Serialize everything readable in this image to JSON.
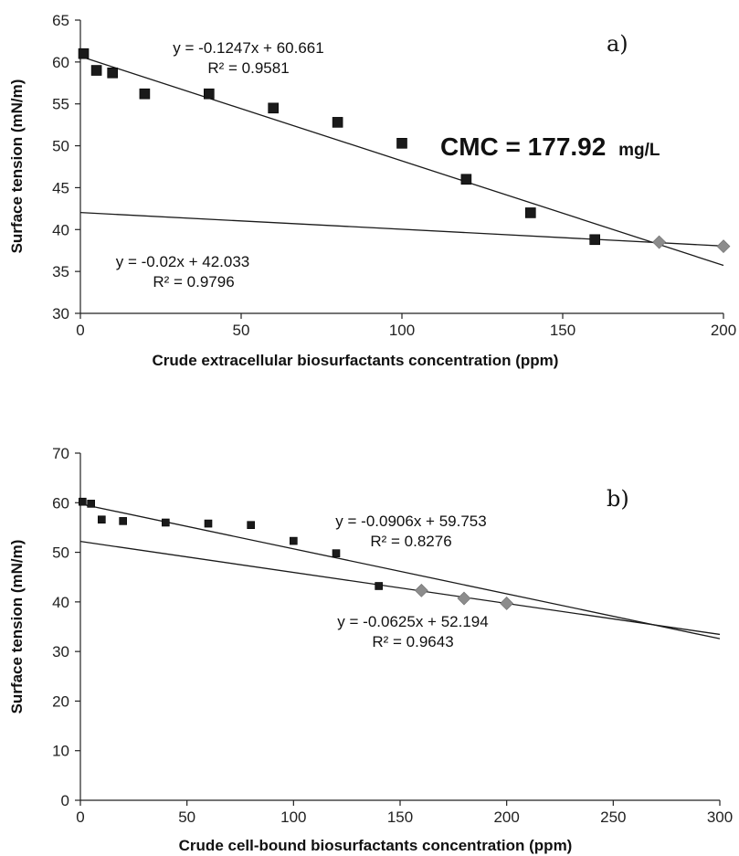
{
  "chart_data": [
    {
      "type": "scatter",
      "panel_label": "a)",
      "xlabel": "Crude extracellular biosurfactants concentration (ppm)",
      "ylabel": "Surface tension (mN/m)",
      "xlim": [
        0,
        200
      ],
      "ylim": [
        30,
        65
      ],
      "xticks": [
        0,
        50,
        100,
        150,
        200
      ],
      "yticks": [
        30,
        35,
        40,
        45,
        50,
        55,
        60,
        65
      ],
      "grid": false,
      "annotation": {
        "cmc_main": "CMC = 177.92",
        "cmc_unit": "mg/L"
      },
      "series": [
        {
          "marker": "square",
          "color": "#1a1a1a",
          "x": [
            1,
            5,
            10,
            20,
            40,
            60,
            80,
            100,
            120,
            140,
            160
          ],
          "y": [
            61.0,
            59.0,
            58.7,
            56.2,
            56.2,
            54.5,
            52.8,
            50.3,
            46.0,
            42.0,
            38.8
          ]
        },
        {
          "marker": "diamond",
          "color": "#8c8c8c",
          "x": [
            180,
            200
          ],
          "y": [
            38.5,
            38.0
          ]
        }
      ],
      "trendlines": [
        {
          "slope": -0.1247,
          "intercept": 60.661,
          "x_range": [
            0,
            200
          ],
          "equation": "y = -0.1247x + 60.661",
          "r2": "R² = 0.9581"
        },
        {
          "slope": -0.02,
          "intercept": 42.033,
          "x_range": [
            0,
            200
          ],
          "equation": "y = -0.02x + 42.033",
          "r2": "R² = 0.9796"
        }
      ]
    },
    {
      "type": "scatter",
      "panel_label": "b)",
      "xlabel": "Crude cell-bound biosurfactants concentration (ppm)",
      "ylabel": "Surface tension (mN/m)",
      "xlim": [
        0,
        300
      ],
      "ylim": [
        0,
        70
      ],
      "xticks": [
        0,
        50,
        100,
        150,
        200,
        250,
        300
      ],
      "yticks": [
        0,
        10,
        20,
        30,
        40,
        50,
        60,
        70
      ],
      "grid": false,
      "series": [
        {
          "marker": "square",
          "color": "#1a1a1a",
          "x": [
            1,
            5,
            10,
            20,
            40,
            60,
            80,
            100,
            120,
            140
          ],
          "y": [
            60.2,
            59.8,
            56.6,
            56.3,
            56.0,
            55.8,
            55.5,
            52.3,
            49.8,
            43.2
          ]
        },
        {
          "marker": "diamond",
          "color": "#8c8c8c",
          "x": [
            160,
            180,
            200
          ],
          "y": [
            42.3,
            40.7,
            39.7
          ]
        }
      ],
      "trendlines": [
        {
          "slope": -0.0906,
          "intercept": 59.753,
          "x_range": [
            0,
            300
          ],
          "equation": "y = -0.0906x + 59.753",
          "r2": "R² = 0.8276"
        },
        {
          "slope": -0.0625,
          "intercept": 52.194,
          "x_range": [
            0,
            300
          ],
          "equation": "y = -0.0625x + 52.194",
          "r2": "R² = 0.9643"
        }
      ]
    }
  ]
}
